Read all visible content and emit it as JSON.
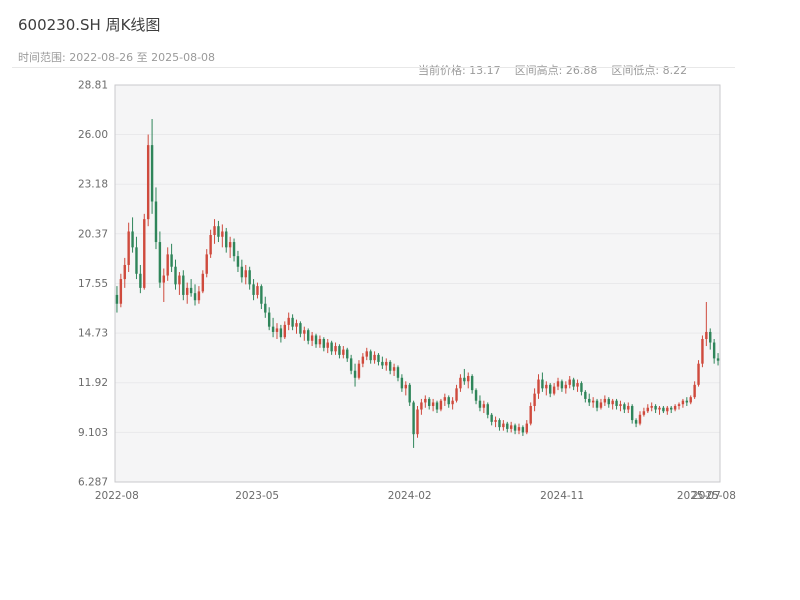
{
  "header": {
    "title": "600230.SH 周K线图",
    "time_range": "时间范围: 2022-08-26 至 2025-08-08",
    "current_price": "当前价格: 13.17",
    "range_high": "区间高点: 26.88",
    "range_low": "区间低点: 8.22"
  },
  "chart_data": {
    "type": "candlestick",
    "symbol": "600230.SH",
    "interval": "weekly",
    "title": "600230.SH 周K线图",
    "date_start": "2022-08-26",
    "date_end": "2025-08-08",
    "current_price": 13.17,
    "range_high": 26.88,
    "range_low": 8.22,
    "y_min": 6.287,
    "y_max": 28.81,
    "y_ticks": [
      "28.81",
      "26.00",
      "23.18",
      "20.37",
      "17.55",
      "14.73",
      "11.92",
      "9.103",
      "6.287"
    ],
    "x_ticks": [
      {
        "label": "2022-08",
        "pos": 0.003
      },
      {
        "label": "2023-05",
        "pos": 0.235
      },
      {
        "label": "2024-02",
        "pos": 0.487
      },
      {
        "label": "2024-11",
        "pos": 0.739
      },
      {
        "label": "2025-07",
        "pos": 0.965
      },
      {
        "label": "2025-08",
        "pos": 0.99
      }
    ],
    "up_color": "#cf4a3d",
    "down_color": "#2f855a",
    "panel_color": "#f5f5f6",
    "grid_color": "#e9e9eb",
    "border_color": "#c9c9cc",
    "tick_color": "#6b6b6b",
    "candles": [
      [
        16.9,
        17.4,
        15.9,
        16.4
      ],
      [
        16.4,
        18.1,
        16.2,
        17.8
      ],
      [
        17.8,
        19.0,
        17.3,
        18.6
      ],
      [
        18.6,
        21.0,
        18.2,
        20.5
      ],
      [
        20.5,
        21.3,
        19.3,
        19.6
      ],
      [
        19.6,
        20.2,
        17.8,
        18.1
      ],
      [
        18.1,
        18.6,
        17.0,
        17.3
      ],
      [
        17.3,
        21.5,
        17.2,
        21.2
      ],
      [
        21.2,
        26.0,
        20.8,
        25.4
      ],
      [
        25.4,
        26.88,
        21.5,
        22.2
      ],
      [
        22.2,
        23.0,
        19.5,
        19.9
      ],
      [
        19.9,
        20.5,
        17.3,
        17.6
      ],
      [
        17.6,
        18.4,
        16.5,
        18.0
      ],
      [
        18.0,
        19.6,
        17.7,
        19.2
      ],
      [
        19.2,
        19.8,
        18.2,
        18.5
      ],
      [
        18.5,
        18.9,
        17.2,
        17.5
      ],
      [
        17.5,
        18.2,
        16.9,
        18.0
      ],
      [
        18.0,
        18.3,
        16.6,
        16.9
      ],
      [
        16.9,
        17.6,
        16.4,
        17.3
      ],
      [
        17.3,
        17.8,
        16.8,
        17.0
      ],
      [
        17.0,
        17.5,
        16.3,
        16.6
      ],
      [
        16.6,
        17.4,
        16.4,
        17.1
      ],
      [
        17.1,
        18.3,
        17.0,
        18.1
      ],
      [
        18.1,
        19.5,
        17.9,
        19.2
      ],
      [
        19.2,
        20.6,
        19.0,
        20.3
      ],
      [
        20.3,
        21.2,
        19.8,
        20.8
      ],
      [
        20.8,
        21.1,
        19.9,
        20.2
      ],
      [
        20.2,
        20.9,
        19.6,
        20.5
      ],
      [
        20.5,
        20.7,
        19.3,
        19.6
      ],
      [
        19.6,
        20.2,
        19.0,
        19.9
      ],
      [
        19.9,
        20.1,
        18.8,
        19.1
      ],
      [
        19.1,
        19.4,
        18.2,
        18.5
      ],
      [
        18.5,
        18.9,
        17.6,
        17.9
      ],
      [
        17.9,
        18.6,
        17.5,
        18.3
      ],
      [
        18.3,
        18.5,
        17.2,
        17.5
      ],
      [
        17.5,
        17.8,
        16.6,
        16.9
      ],
      [
        16.9,
        17.6,
        16.7,
        17.4
      ],
      [
        17.4,
        17.5,
        16.1,
        16.4
      ],
      [
        16.4,
        16.8,
        15.6,
        15.9
      ],
      [
        15.9,
        16.2,
        14.9,
        15.1
      ],
      [
        15.1,
        15.6,
        14.5,
        14.8
      ],
      [
        14.8,
        15.3,
        14.4,
        15.0
      ],
      [
        15.0,
        15.2,
        14.2,
        14.5
      ],
      [
        14.5,
        15.4,
        14.4,
        15.2
      ],
      [
        15.2,
        15.9,
        14.9,
        15.6
      ],
      [
        15.6,
        15.8,
        14.9,
        15.1
      ],
      [
        15.1,
        15.5,
        14.7,
        15.3
      ],
      [
        15.3,
        15.4,
        14.5,
        14.7
      ],
      [
        14.7,
        15.1,
        14.3,
        14.9
      ],
      [
        14.9,
        15.0,
        14.1,
        14.3
      ],
      [
        14.3,
        14.8,
        14.0,
        14.6
      ],
      [
        14.6,
        14.7,
        13.9,
        14.1
      ],
      [
        14.1,
        14.6,
        13.9,
        14.4
      ],
      [
        14.4,
        14.5,
        13.7,
        13.9
      ],
      [
        13.9,
        14.4,
        13.6,
        14.2
      ],
      [
        14.2,
        14.3,
        13.5,
        13.7
      ],
      [
        13.7,
        14.2,
        13.5,
        14.0
      ],
      [
        14.0,
        14.1,
        13.3,
        13.5
      ],
      [
        13.5,
        14.0,
        13.3,
        13.8
      ],
      [
        13.8,
        13.9,
        13.1,
        13.3
      ],
      [
        13.3,
        13.5,
        12.4,
        12.6
      ],
      [
        12.6,
        13.0,
        11.7,
        12.2
      ],
      [
        12.2,
        13.2,
        12.1,
        13.0
      ],
      [
        13.0,
        13.6,
        12.8,
        13.4
      ],
      [
        13.4,
        13.9,
        13.2,
        13.7
      ],
      [
        13.7,
        13.8,
        13.0,
        13.2
      ],
      [
        13.2,
        13.7,
        13.0,
        13.5
      ],
      [
        13.5,
        13.6,
        12.9,
        13.1
      ],
      [
        13.1,
        13.4,
        12.7,
        12.9
      ],
      [
        12.9,
        13.3,
        12.6,
        13.1
      ],
      [
        13.1,
        13.2,
        12.4,
        12.6
      ],
      [
        12.6,
        13.0,
        12.3,
        12.8
      ],
      [
        12.8,
        12.9,
        12.0,
        12.2
      ],
      [
        12.2,
        12.4,
        11.4,
        11.6
      ],
      [
        11.6,
        12.0,
        11.2,
        11.8
      ],
      [
        11.8,
        11.9,
        10.6,
        10.8
      ],
      [
        10.8,
        10.9,
        8.22,
        9.0
      ],
      [
        9.0,
        10.6,
        8.8,
        10.4
      ],
      [
        10.4,
        11.0,
        10.1,
        10.8
      ],
      [
        10.8,
        11.2,
        10.5,
        11.0
      ],
      [
        11.0,
        11.1,
        10.4,
        10.6
      ],
      [
        10.6,
        11.0,
        10.3,
        10.8
      ],
      [
        10.8,
        10.9,
        10.2,
        10.4
      ],
      [
        10.4,
        11.0,
        10.3,
        10.9
      ],
      [
        10.9,
        11.3,
        10.6,
        11.1
      ],
      [
        11.1,
        11.2,
        10.5,
        10.7
      ],
      [
        10.7,
        11.1,
        10.4,
        10.9
      ],
      [
        10.9,
        11.8,
        10.8,
        11.6
      ],
      [
        11.6,
        12.4,
        11.4,
        12.2
      ],
      [
        12.2,
        12.7,
        11.8,
        12.0
      ],
      [
        12.0,
        12.5,
        11.6,
        12.3
      ],
      [
        12.3,
        12.4,
        11.3,
        11.5
      ],
      [
        11.5,
        11.6,
        10.7,
        10.9
      ],
      [
        10.9,
        11.2,
        10.3,
        10.5
      ],
      [
        10.5,
        10.9,
        10.2,
        10.7
      ],
      [
        10.7,
        10.8,
        9.9,
        10.1
      ],
      [
        10.1,
        10.2,
        9.5,
        9.7
      ],
      [
        9.7,
        10.0,
        9.4,
        9.8
      ],
      [
        9.8,
        9.9,
        9.2,
        9.4
      ],
      [
        9.4,
        9.8,
        9.2,
        9.6
      ],
      [
        9.6,
        9.7,
        9.1,
        9.3
      ],
      [
        9.3,
        9.7,
        9.1,
        9.5
      ],
      [
        9.5,
        9.6,
        9.0,
        9.2
      ],
      [
        9.2,
        9.6,
        9.0,
        9.4
      ],
      [
        9.4,
        9.5,
        8.9,
        9.1
      ],
      [
        9.1,
        9.8,
        9.0,
        9.6
      ],
      [
        9.6,
        10.8,
        9.5,
        10.6
      ],
      [
        10.6,
        11.6,
        10.3,
        11.3
      ],
      [
        11.3,
        12.4,
        11.0,
        12.1
      ],
      [
        12.1,
        12.5,
        11.4,
        11.6
      ],
      [
        11.6,
        12.0,
        11.2,
        11.8
      ],
      [
        11.8,
        11.9,
        11.1,
        11.3
      ],
      [
        11.3,
        11.9,
        11.2,
        11.7
      ],
      [
        11.7,
        12.2,
        11.5,
        12.0
      ],
      [
        12.0,
        12.1,
        11.4,
        11.6
      ],
      [
        11.6,
        12.0,
        11.3,
        11.8
      ],
      [
        11.8,
        12.3,
        11.6,
        12.1
      ],
      [
        12.1,
        12.2,
        11.5,
        11.7
      ],
      [
        11.7,
        12.1,
        11.4,
        11.9
      ],
      [
        11.9,
        12.0,
        11.2,
        11.4
      ],
      [
        11.4,
        11.5,
        10.8,
        11.0
      ],
      [
        11.0,
        11.3,
        10.6,
        10.8
      ],
      [
        10.8,
        11.1,
        10.5,
        10.9
      ],
      [
        10.9,
        11.0,
        10.3,
        10.5
      ],
      [
        10.5,
        11.0,
        10.4,
        10.8
      ],
      [
        10.8,
        11.2,
        10.6,
        11.0
      ],
      [
        11.0,
        11.1,
        10.5,
        10.7
      ],
      [
        10.7,
        11.0,
        10.4,
        10.9
      ],
      [
        10.9,
        11.0,
        10.4,
        10.6
      ],
      [
        10.6,
        10.9,
        10.3,
        10.7
      ],
      [
        10.7,
        10.8,
        10.2,
        10.4
      ],
      [
        10.4,
        10.8,
        10.2,
        10.6
      ],
      [
        10.6,
        10.7,
        9.6,
        9.8
      ],
      [
        9.8,
        9.9,
        9.4,
        9.6
      ],
      [
        9.6,
        10.3,
        9.5,
        10.1
      ],
      [
        10.1,
        10.5,
        10.0,
        10.3
      ],
      [
        10.3,
        10.7,
        10.2,
        10.5
      ],
      [
        10.5,
        10.8,
        10.3,
        10.6
      ],
      [
        10.6,
        10.7,
        10.2,
        10.4
      ],
      [
        10.4,
        10.6,
        10.1,
        10.5
      ],
      [
        10.5,
        10.6,
        10.2,
        10.3
      ],
      [
        10.3,
        10.6,
        10.1,
        10.5
      ],
      [
        10.5,
        10.6,
        10.2,
        10.4
      ],
      [
        10.4,
        10.7,
        10.3,
        10.6
      ],
      [
        10.6,
        10.8,
        10.4,
        10.7
      ],
      [
        10.7,
        11.0,
        10.5,
        10.9
      ],
      [
        10.9,
        11.1,
        10.6,
        10.8
      ],
      [
        10.8,
        11.2,
        10.7,
        11.1
      ],
      [
        11.1,
        12.0,
        11.0,
        11.8
      ],
      [
        11.8,
        13.2,
        11.7,
        13.0
      ],
      [
        13.0,
        14.6,
        12.8,
        14.4
      ],
      [
        14.4,
        16.5,
        14.0,
        14.8
      ],
      [
        14.8,
        15.0,
        13.8,
        14.2
      ],
      [
        14.2,
        14.4,
        13.0,
        13.3
      ],
      [
        13.3,
        13.6,
        12.9,
        13.17
      ]
    ]
  }
}
